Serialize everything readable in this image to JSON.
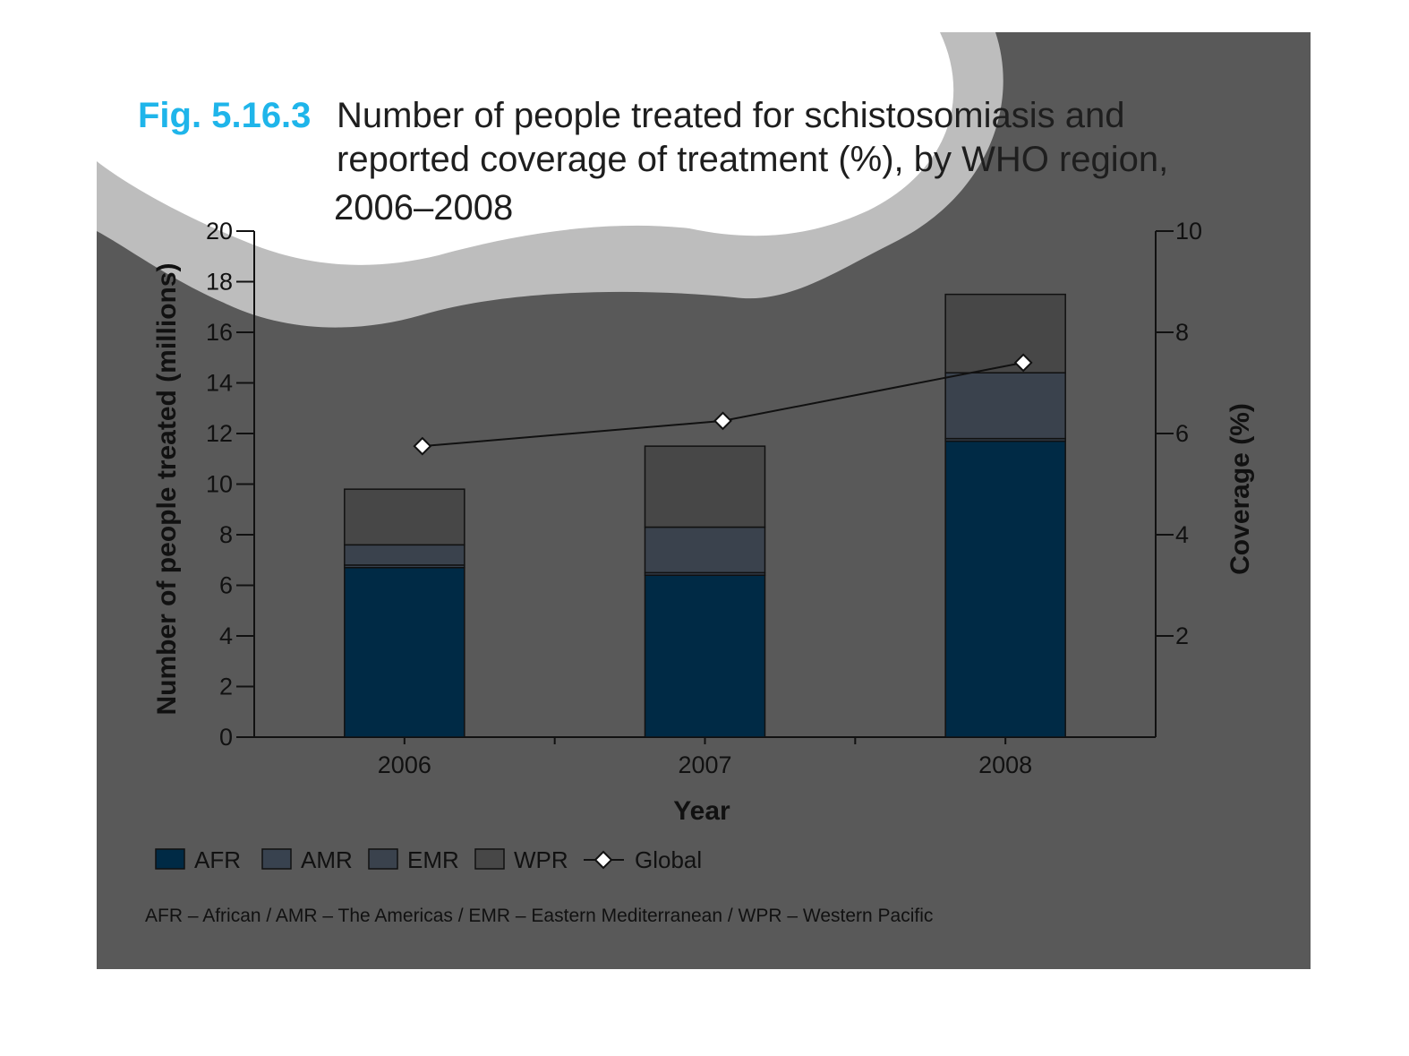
{
  "figure": {
    "number": "Fig. 5.16.3",
    "title_lines": [
      "Number of people treated for schistosomiasis and",
      "reported coverage of treatment (%), by WHO region,",
      "2006–2008"
    ],
    "footnote": "AFR – African / AMR – The Americas / EMR – Eastern Mediterranean / WPR – Western Pacific"
  },
  "colors": {
    "slide_bg": "#595959",
    "blob_light": "#bdbdbd",
    "blob_white": "#ffffff",
    "fig_number": "#1fb5ea",
    "AFR": "#002a45",
    "AMR": "#38424f",
    "EMR": "#3a424d",
    "WPR": "#474747",
    "line": "#111111"
  },
  "chart_data": {
    "type": "bar",
    "stacked": true,
    "categories": [
      "2006",
      "2007",
      "2008"
    ],
    "xlabel": "Year",
    "ylabel": "Number of people treated (millions)",
    "ylabel_right": "Coverage (%)",
    "ylim": [
      0,
      20
    ],
    "ylim_right": [
      0,
      10
    ],
    "yticks": [
      0,
      2,
      4,
      6,
      8,
      10,
      12,
      14,
      16,
      18,
      20
    ],
    "yticks_right": [
      2,
      4,
      6,
      8,
      10
    ],
    "legend_position": "bottom",
    "grid": false,
    "series": [
      {
        "name": "AFR",
        "values": [
          6.7,
          6.4,
          11.7
        ]
      },
      {
        "name": "AMR",
        "values": [
          0.1,
          0.1,
          0.1
        ]
      },
      {
        "name": "EMR",
        "values": [
          0.8,
          1.8,
          2.6
        ]
      },
      {
        "name": "WPR",
        "values": [
          2.2,
          3.2,
          3.1
        ]
      }
    ],
    "line_series": {
      "name": "Global",
      "axis": "right",
      "values": [
        5.75,
        6.25,
        7.4
      ]
    }
  }
}
